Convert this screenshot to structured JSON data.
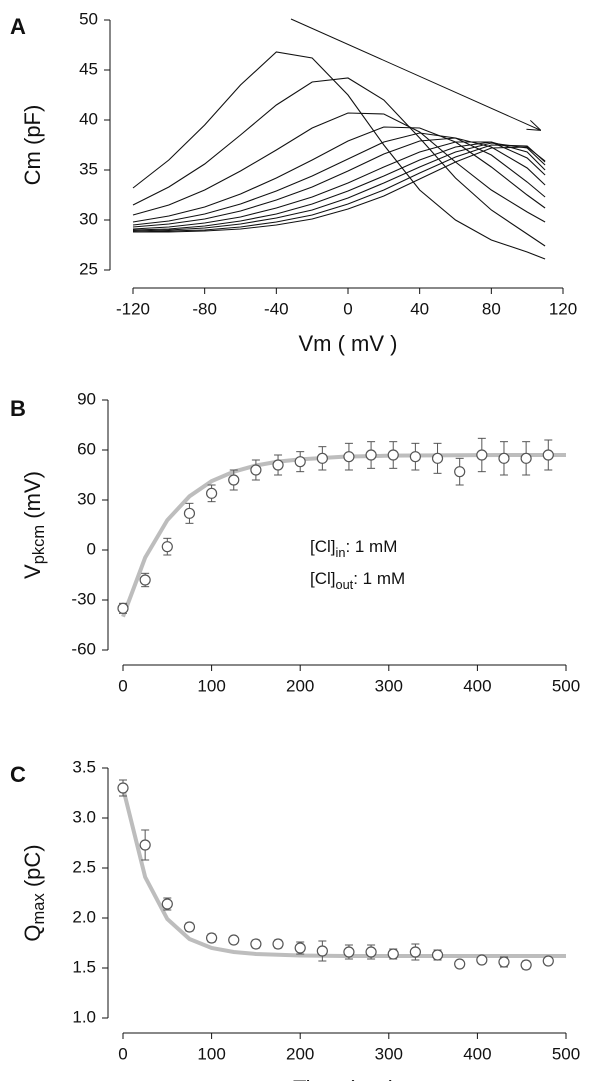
{
  "chart_data": [
    {
      "type": "line",
      "panel_label": "A",
      "xlabel": "Vm ( mV )",
      "ylabel": {
        "text": "Cm (pF)"
      },
      "xlim": [
        -120,
        120
      ],
      "xticks": [
        -120,
        -80,
        -40,
        0,
        40,
        80,
        120
      ],
      "ylim": [
        25,
        50
      ],
      "yticks": [
        25,
        30,
        35,
        40,
        45,
        50
      ],
      "x": [
        -120,
        -100,
        -80,
        -60,
        -40,
        -20,
        0,
        20,
        40,
        60,
        80,
        100,
        110
      ],
      "series": [
        {
          "color": "#111",
          "values": [
            33.2,
            36,
            39.5,
            43.5,
            46.8,
            46.2,
            42.5,
            37.5,
            33,
            30,
            28,
            26.8,
            26.1
          ]
        },
        {
          "color": "#111",
          "values": [
            31.5,
            33.3,
            35.6,
            38.5,
            41.5,
            43.8,
            44.2,
            42,
            38.2,
            34.2,
            31,
            28.6,
            27.4
          ]
        },
        {
          "color": "#111",
          "values": [
            30.5,
            31.5,
            33,
            34.9,
            37,
            39.2,
            40.7,
            40.6,
            38.8,
            35.8,
            33,
            30.8,
            29.8
          ]
        },
        {
          "color": "#111",
          "values": [
            29.8,
            30.4,
            31.3,
            32.6,
            34.2,
            36,
            37.9,
            39.3,
            39.2,
            37.8,
            35.3,
            32.5,
            31.2
          ]
        },
        {
          "color": "#111",
          "values": [
            29.5,
            29.9,
            30.6,
            31.6,
            32.9,
            34.4,
            36.1,
            37.8,
            38.7,
            38.2,
            36.5,
            33.8,
            32.3
          ]
        },
        {
          "color": "#111",
          "values": [
            29.3,
            29.6,
            30.1,
            30.9,
            32,
            33.3,
            34.9,
            36.6,
            37.9,
            38.2,
            37.3,
            35.2,
            33.5
          ]
        },
        {
          "color": "#111",
          "values": [
            29.1,
            29.3,
            29.7,
            30.3,
            31.2,
            32.3,
            33.7,
            35.3,
            36.8,
            37.8,
            37.8,
            36.2,
            34.5
          ]
        },
        {
          "color": "#111",
          "values": [
            29,
            29.1,
            29.4,
            29.9,
            30.6,
            31.6,
            32.9,
            34.4,
            36,
            37.3,
            37.8,
            36.8,
            35
          ]
        },
        {
          "color": "#111",
          "values": [
            28.9,
            29,
            29.2,
            29.6,
            30.2,
            31,
            32.2,
            33.7,
            35.3,
            36.8,
            37.7,
            37.2,
            35.5
          ]
        },
        {
          "color": "#111",
          "values": [
            28.8,
            28.9,
            29,
            29.3,
            29.8,
            30.5,
            31.6,
            33,
            34.7,
            36.3,
            37.5,
            37.4,
            35.8
          ]
        },
        {
          "color": "#111",
          "values": [
            28.8,
            28.8,
            28.9,
            29.1,
            29.5,
            30.1,
            31.1,
            32.4,
            34.1,
            35.8,
            37.2,
            37.3,
            35.9
          ]
        }
      ]
    },
    {
      "type": "scatter",
      "panel_label": "B",
      "ylabel": {
        "text": "V",
        "sub": "pkcm",
        "rest": " (mV)"
      },
      "xlim": [
        0,
        500
      ],
      "xticks": [
        0,
        100,
        200,
        300,
        400,
        500
      ],
      "ylim": [
        -60,
        90
      ],
      "yticks": [
        -60,
        -30,
        0,
        30,
        60,
        90
      ],
      "points": {
        "color": "#555",
        "x": [
          0,
          25,
          50,
          75,
          100,
          125,
          150,
          175,
          200,
          225,
          255,
          280,
          305,
          330,
          355,
          380,
          405,
          430,
          455,
          480
        ],
        "values": [
          -35,
          -18,
          2,
          22,
          34,
          42,
          48,
          51,
          53,
          55,
          56,
          57,
          57,
          56,
          55,
          47,
          57,
          55,
          55,
          57
        ],
        "errors": [
          3,
          4,
          5,
          6,
          5,
          6,
          6,
          6,
          6,
          7,
          8,
          8,
          8,
          8,
          9,
          8,
          10,
          10,
          10,
          9
        ]
      },
      "fit": {
        "color": "#bdbdbd",
        "x": [
          0,
          25,
          50,
          75,
          100,
          125,
          150,
          175,
          200,
          250,
          300,
          350,
          400,
          450,
          500
        ],
        "values": [
          -40,
          -4.6,
          17.9,
          32.2,
          41.3,
          47,
          50.7,
          53,
          54.4,
          56,
          56.6,
          56.8,
          56.9,
          57,
          57
        ]
      },
      "annotations": [
        {
          "text": "[Cl]",
          "sub": "in",
          "rest": ": 1 mM"
        },
        {
          "text": "[Cl]",
          "sub": "out",
          "rest": ": 1 mM"
        }
      ]
    },
    {
      "type": "scatter",
      "panel_label": "C",
      "xlabel": "Time (sec)",
      "ylabel": {
        "text": "Q",
        "sub": "max",
        "rest": " (pC)"
      },
      "xlim": [
        0,
        500
      ],
      "xticks": [
        0,
        100,
        200,
        300,
        400,
        500
      ],
      "ylim": [
        1,
        3.5
      ],
      "yticks": [
        {
          "value": 1,
          "label": "1.0"
        },
        1.5,
        {
          "value": 2,
          "label": "2.0"
        },
        2.5,
        {
          "value": 3,
          "label": "3.0"
        },
        3.5
      ],
      "points": {
        "color": "#555",
        "x": [
          0,
          25,
          50,
          75,
          100,
          125,
          150,
          175,
          200,
          225,
          255,
          280,
          305,
          330,
          355,
          380,
          405,
          430,
          455,
          480
        ],
        "values": [
          3.3,
          2.73,
          2.14,
          1.91,
          1.8,
          1.78,
          1.74,
          1.74,
          1.7,
          1.67,
          1.66,
          1.66,
          1.64,
          1.66,
          1.63,
          1.54,
          1.58,
          1.56,
          1.53,
          1.57
        ],
        "errors": [
          0.08,
          0.15,
          0.06,
          0.04,
          0.04,
          0.03,
          0.04,
          0.04,
          0.06,
          0.1,
          0.07,
          0.07,
          0.05,
          0.08,
          0.05,
          0.03,
          0.03,
          0.05,
          0.04,
          0.03
        ]
      },
      "fit": {
        "color": "#bdbdbd",
        "x": [
          0,
          25,
          50,
          75,
          100,
          125,
          150,
          200,
          250,
          300,
          350,
          400,
          450,
          500
        ],
        "values": [
          3.3,
          2.41,
          1.99,
          1.79,
          1.7,
          1.66,
          1.64,
          1.625,
          1.62,
          1.62,
          1.62,
          1.62,
          1.62,
          1.62
        ]
      }
    }
  ]
}
